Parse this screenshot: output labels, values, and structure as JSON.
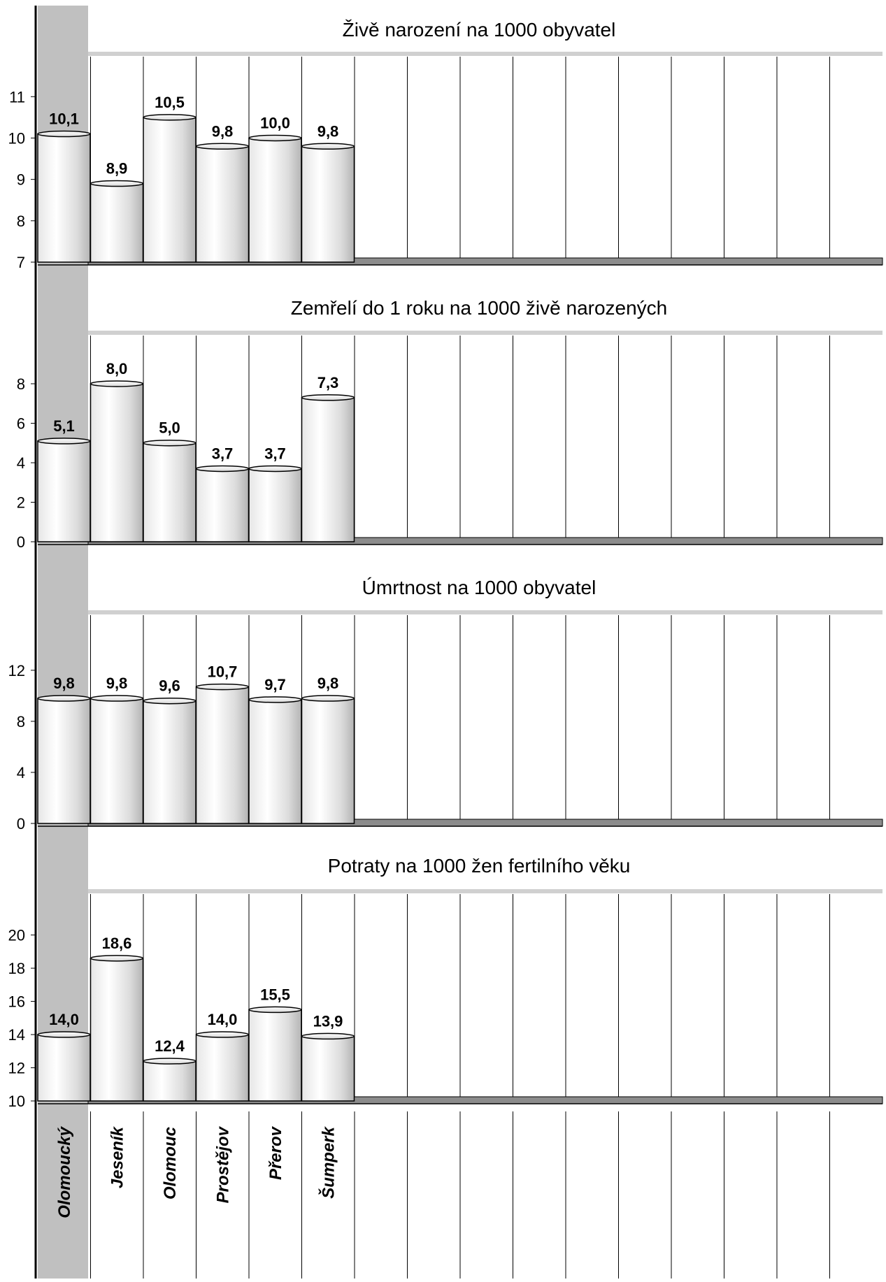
{
  "chart_data": [
    {
      "type": "bar",
      "title": "Živě narození na 1000 obyvatel",
      "categories": [
        "Olomoucký",
        "Jeseník",
        "Olomouc",
        "Prostějov",
        "Přerov",
        "Šumperk"
      ],
      "values": [
        10.1,
        8.9,
        10.5,
        9.8,
        10.0,
        9.8
      ],
      "value_labels": [
        "10,1",
        "8,9",
        "10,5",
        "9,8",
        "10,0",
        "9,8"
      ],
      "yticks": [
        7,
        8,
        9,
        10,
        11
      ],
      "ytick_labels": [
        "7",
        "8",
        "9",
        "10",
        "11"
      ],
      "ylim": [
        7,
        11.9
      ],
      "grid": true
    },
    {
      "type": "bar",
      "title": "Zemřelí do 1 roku na 1000 živě narozených",
      "categories": [
        "Olomoucký",
        "Jeseník",
        "Olomouc",
        "Prostějov",
        "Přerov",
        "Šumperk"
      ],
      "values": [
        5.1,
        8.0,
        5.0,
        3.7,
        3.7,
        7.3
      ],
      "value_labels": [
        "5,1",
        "8,0",
        "5,0",
        "3,7",
        "3,7",
        "7,3"
      ],
      "yticks": [
        0,
        2,
        4,
        6,
        8
      ],
      "ytick_labels": [
        "0",
        "2",
        "4",
        "6",
        "8"
      ],
      "ylim": [
        0,
        10.3
      ],
      "grid": true
    },
    {
      "type": "bar",
      "title": "Úmrtnost na 1000 obyvatel",
      "categories": [
        "Olomoucký",
        "Jeseník",
        "Olomouc",
        "Prostějov",
        "Přerov",
        "Šumperk"
      ],
      "values": [
        9.8,
        9.8,
        9.6,
        10.7,
        9.7,
        9.8
      ],
      "value_labels": [
        "9,8",
        "9,8",
        "9,6",
        "10,7",
        "9,7",
        "9,8"
      ],
      "yticks": [
        0,
        4,
        8,
        12
      ],
      "ytick_labels": [
        "0",
        "4",
        "8",
        "12"
      ],
      "ylim": [
        0,
        16.1
      ],
      "grid": true
    },
    {
      "type": "bar",
      "title": "Potraty na 1000 žen fertilního věku",
      "categories": [
        "Olomoucký",
        "Jeseník",
        "Olomouc",
        "Prostějov",
        "Přerov",
        "Šumperk"
      ],
      "values": [
        14.0,
        18.6,
        12.4,
        14.0,
        15.5,
        13.9
      ],
      "value_labels": [
        "14,0",
        "18,6",
        "12,4",
        "14,0",
        "15,5",
        "13,9"
      ],
      "yticks": [
        10,
        12,
        14,
        16,
        18,
        20
      ],
      "ytick_labels": [
        "10",
        "12",
        "14",
        "16",
        "18",
        "20"
      ],
      "ylim": [
        10,
        22.3
      ],
      "grid": true
    }
  ],
  "category_labels": [
    "Olomoucký",
    "Jeseník",
    "Olomouc",
    "Prostějov",
    "Přerov",
    "Šumperk"
  ],
  "colors": {
    "highlight_band": "#c0c0c0",
    "floor": "#8c8c8c",
    "bar_fill_light": "#ffffff",
    "bar_fill_dark": "#c8c8c8",
    "axis": "#000000"
  }
}
